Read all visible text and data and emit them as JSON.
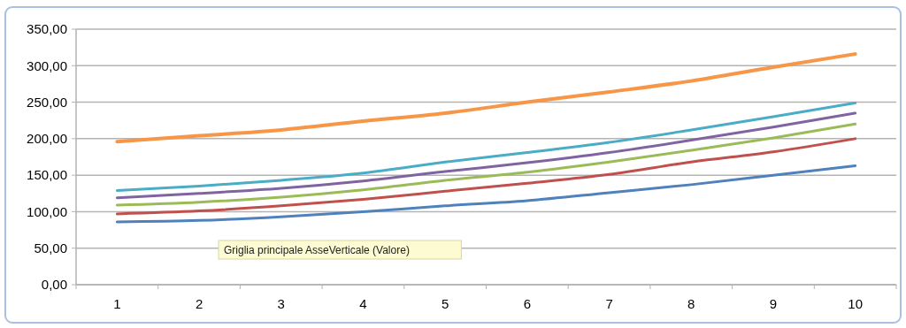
{
  "chart_data": {
    "type": "line",
    "categories": [
      "1",
      "2",
      "3",
      "4",
      "5",
      "6",
      "7",
      "8",
      "9",
      "10"
    ],
    "ylim": [
      0,
      350
    ],
    "yticks": [
      {
        "value": 0,
        "label": "0,00"
      },
      {
        "value": 50,
        "label": "50,00"
      },
      {
        "value": 100,
        "label": "100,00"
      },
      {
        "value": 150,
        "label": "150,00"
      },
      {
        "value": 200,
        "label": "200,00"
      },
      {
        "value": 250,
        "label": "250,00"
      },
      {
        "value": 300,
        "label": "300,00"
      },
      {
        "value": 350,
        "label": "350,00"
      }
    ],
    "grid": "y",
    "marker": "none",
    "line_style": "solid",
    "series": [
      {
        "color": "#f79646",
        "values": [
          196,
          204,
          212,
          224,
          235,
          250,
          264,
          279,
          298,
          316
        ]
      },
      {
        "color": "#4bacc6",
        "values": [
          129,
          135,
          143,
          153,
          168,
          181,
          195,
          212,
          230,
          249
        ]
      },
      {
        "color": "#8064a2",
        "values": [
          119,
          125,
          132,
          142,
          155,
          167,
          181,
          198,
          216,
          235
        ]
      },
      {
        "color": "#9bbb59",
        "values": [
          109,
          113,
          120,
          130,
          143,
          154,
          168,
          184,
          201,
          220
        ]
      },
      {
        "color": "#c0504d",
        "values": [
          97,
          101,
          108,
          117,
          128,
          139,
          151,
          168,
          182,
          200
        ]
      },
      {
        "color": "#4f81bd",
        "values": [
          86,
          88,
          93,
          100,
          108,
          115,
          126,
          137,
          150,
          163
        ]
      }
    ],
    "annotations": [
      "Griglia principale AsseVerticale (Valore)"
    ]
  }
}
